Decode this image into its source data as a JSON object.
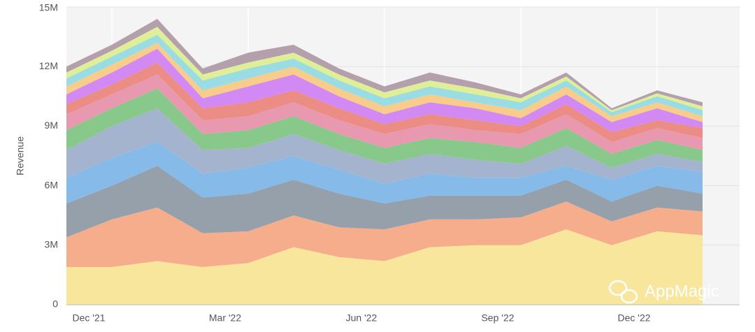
{
  "chart_data": {
    "type": "stacked_area",
    "y_label": "Revenue",
    "watermark": "AppMagic",
    "categories": [
      null,
      "Dec '21",
      null,
      null,
      "Mar '22",
      null,
      null,
      "Jun '22",
      null,
      null,
      "Sep '22",
      null,
      null,
      "Dec '22",
      null
    ],
    "ylim": [
      0,
      15000000
    ],
    "yticks": [
      0,
      {
        "value": 3000000,
        "label": "3M"
      },
      {
        "value": 6000000,
        "label": "6M"
      },
      {
        "value": 9000000,
        "label": "9M"
      },
      {
        "value": 12000000,
        "label": "12M"
      },
      {
        "value": 15000000,
        "label": "15M"
      }
    ],
    "grid": true,
    "series": [
      {
        "color": "#f7e597",
        "values": [
          1900000,
          1900000,
          2200000,
          1900000,
          2100000,
          2900000,
          2400000,
          2200000,
          2900000,
          3000000,
          3000000,
          3800000,
          3000000,
          3700000,
          3500000
        ]
      },
      {
        "color": "#f6a986",
        "values": [
          1500000,
          2400000,
          2700000,
          1700000,
          1600000,
          1600000,
          1500000,
          1600000,
          1400000,
          1300000,
          1400000,
          1400000,
          1200000,
          1200000,
          1200000
        ]
      },
      {
        "color": "#8f9ba6",
        "values": [
          1700000,
          1700000,
          2100000,
          1800000,
          1900000,
          1800000,
          1700000,
          1300000,
          1200000,
          1200000,
          1100000,
          1100000,
          1000000,
          1100000,
          900000
        ]
      },
      {
        "color": "#7fb6e8",
        "values": [
          1300000,
          1400000,
          1200000,
          1200000,
          1300000,
          1200000,
          1200000,
          1000000,
          1100000,
          900000,
          900000,
          700000,
          1100000,
          1000000,
          1100000
        ]
      },
      {
        "color": "#9fb0cc",
        "values": [
          1400000,
          1600000,
          1700000,
          1200000,
          1000000,
          1100000,
          1000000,
          1000000,
          1000000,
          900000,
          700000,
          1000000,
          600000,
          600000,
          500000
        ]
      },
      {
        "color": "#82c584",
        "values": [
          1000000,
          900000,
          1000000,
          800000,
          900000,
          900000,
          800000,
          800000,
          800000,
          900000,
          800000,
          900000,
          700000,
          700000,
          600000
        ]
      },
      {
        "color": "#e893ab",
        "values": [
          800000,
          700000,
          700000,
          700000,
          700000,
          700000,
          700000,
          700000,
          700000,
          600000,
          700000,
          700000,
          600000,
          600000,
          600000
        ]
      },
      {
        "color": "#ea877d",
        "values": [
          500000,
          500000,
          600000,
          600000,
          700000,
          600000,
          600000,
          500000,
          500000,
          500000,
          400000,
          500000,
          500000,
          400000,
          500000
        ]
      },
      {
        "color": "#d183f2",
        "values": [
          500000,
          600000,
          700000,
          500000,
          800000,
          800000,
          600000,
          500000,
          600000,
          600000,
          400000,
          500000,
          500000,
          600000,
          300000
        ]
      },
      {
        "color": "#f8c985",
        "values": [
          400000,
          400000,
          300000,
          400000,
          400000,
          400000,
          400000,
          400000,
          400000,
          300000,
          400000,
          400000,
          300000,
          300000,
          300000
        ]
      },
      {
        "color": "#93dae2",
        "values": [
          400000,
          400000,
          400000,
          500000,
          500000,
          400000,
          400000,
          400000,
          400000,
          400000,
          400000,
          300000,
          200000,
          300000,
          300000
        ]
      },
      {
        "color": "#dcee92",
        "values": [
          300000,
          300000,
          400000,
          300000,
          300000,
          300000,
          300000,
          300000,
          300000,
          300000,
          200000,
          200000,
          100000,
          150000,
          200000
        ]
      },
      {
        "color": "#b09aa8",
        "values": [
          300000,
          300000,
          400000,
          300000,
          500000,
          400000,
          300000,
          300000,
          400000,
          300000,
          200000,
          200000,
          100000,
          150000,
          200000
        ]
      }
    ]
  }
}
